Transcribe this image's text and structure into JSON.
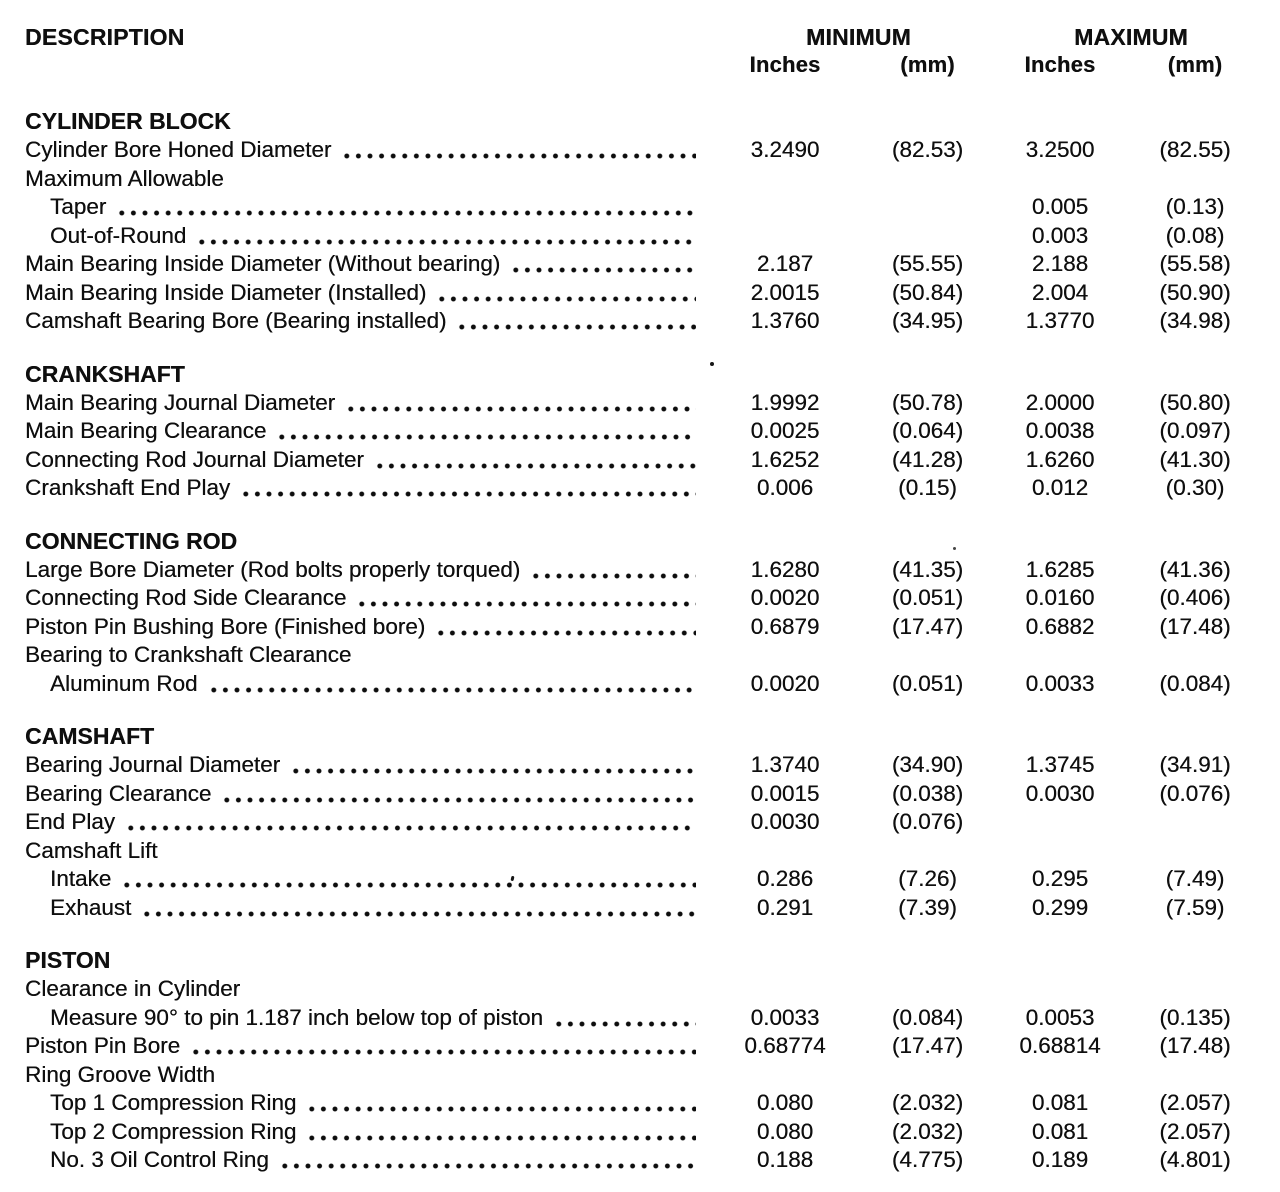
{
  "table": {
    "headers": {
      "description": "DESCRIPTION",
      "minimum": "MINIMUM",
      "maximum": "MAXIMUM",
      "inches": "Inches",
      "mm": "(mm)"
    },
    "sections": [
      {
        "title": "CYLINDER BLOCK",
        "rows": [
          {
            "label": "Cylinder Bore Honed Diameter",
            "indent": 0,
            "dots": true,
            "min_in": "3.2490",
            "min_mm": "(82.53)",
            "max_in": "3.2500",
            "max_mm": "(82.55)"
          },
          {
            "label": "Maximum Allowable",
            "indent": 0,
            "dots": false,
            "min_in": "",
            "min_mm": "",
            "max_in": "",
            "max_mm": ""
          },
          {
            "label": "Taper",
            "indent": 1,
            "dots": true,
            "min_in": "",
            "min_mm": "",
            "max_in": "0.005",
            "max_mm": "(0.13)"
          },
          {
            "label": "Out-of-Round",
            "indent": 1,
            "dots": true,
            "min_in": "",
            "min_mm": "",
            "max_in": "0.003",
            "max_mm": "(0.08)"
          },
          {
            "label": "Main Bearing Inside Diameter (Without bearing)",
            "indent": 0,
            "dots": true,
            "min_in": "2.187",
            "min_mm": "(55.55)",
            "max_in": "2.188",
            "max_mm": "(55.58)"
          },
          {
            "label": "Main Bearing Inside Diameter (Installed)",
            "indent": 0,
            "dots": true,
            "min_in": "2.0015",
            "min_mm": "(50.84)",
            "max_in": "2.004",
            "max_mm": "(50.90)"
          },
          {
            "label": "Camshaft Bearing Bore (Bearing installed)",
            "indent": 0,
            "dots": true,
            "min_in": "1.3760",
            "min_mm": "(34.95)",
            "max_in": "1.3770",
            "max_mm": "(34.98)"
          }
        ]
      },
      {
        "title": "CRANKSHAFT",
        "rows": [
          {
            "label": "Main Bearing Journal Diameter",
            "indent": 0,
            "dots": true,
            "min_in": "1.9992",
            "min_mm": "(50.78)",
            "max_in": "2.0000",
            "max_mm": "(50.80)"
          },
          {
            "label": "Main Bearing Clearance",
            "indent": 0,
            "dots": true,
            "min_in": "0.0025",
            "min_mm": "(0.064)",
            "max_in": "0.0038",
            "max_mm": "(0.097)"
          },
          {
            "label": "Connecting Rod Journal Diameter",
            "indent": 0,
            "dots": true,
            "min_in": "1.6252",
            "min_mm": "(41.28)",
            "max_in": "1.6260",
            "max_mm": "(41.30)"
          },
          {
            "label": "Crankshaft End Play",
            "indent": 0,
            "dots": true,
            "min_in": "0.006",
            "min_mm": "(0.15)",
            "max_in": "0.012",
            "max_mm": "(0.30)"
          }
        ]
      },
      {
        "title": "CONNECTING ROD",
        "rows": [
          {
            "label": "Large Bore Diameter (Rod bolts properly torqued)",
            "indent": 0,
            "dots": true,
            "min_in": "1.6280",
            "min_mm": "(41.35)",
            "max_in": "1.6285",
            "max_mm": "(41.36)"
          },
          {
            "label": "Connecting Rod Side Clearance",
            "indent": 0,
            "dots": true,
            "min_in": "0.0020",
            "min_mm": "(0.051)",
            "max_in": "0.0160",
            "max_mm": "(0.406)"
          },
          {
            "label": "Piston Pin Bushing Bore (Finished bore)",
            "indent": 0,
            "dots": true,
            "min_in": "0.6879",
            "min_mm": "(17.47)",
            "max_in": "0.6882",
            "max_mm": "(17.48)"
          },
          {
            "label": "Bearing to Crankshaft Clearance",
            "indent": 0,
            "dots": false,
            "min_in": "",
            "min_mm": "",
            "max_in": "",
            "max_mm": ""
          },
          {
            "label": "Aluminum Rod",
            "indent": 1,
            "dots": true,
            "min_in": "0.0020",
            "min_mm": "(0.051)",
            "max_in": "0.0033",
            "max_mm": "(0.084)"
          }
        ]
      },
      {
        "title": "CAMSHAFT",
        "rows": [
          {
            "label": "Bearing Journal Diameter",
            "indent": 0,
            "dots": true,
            "min_in": "1.3740",
            "min_mm": "(34.90)",
            "max_in": "1.3745",
            "max_mm": "(34.91)"
          },
          {
            "label": "Bearing Clearance",
            "indent": 0,
            "dots": true,
            "min_in": "0.0015",
            "min_mm": "(0.038)",
            "max_in": "0.0030",
            "max_mm": "(0.076)"
          },
          {
            "label": "End Play",
            "indent": 0,
            "dots": true,
            "min_in": "0.0030",
            "min_mm": "(0.076)",
            "max_in": "",
            "max_mm": ""
          },
          {
            "label": "Camshaft Lift",
            "indent": 0,
            "dots": false,
            "min_in": "",
            "min_mm": "",
            "max_in": "",
            "max_mm": ""
          },
          {
            "label": "Intake",
            "indent": 1,
            "dots": true,
            "min_in": "0.286",
            "min_mm": "(7.26)",
            "max_in": "0.295",
            "max_mm": "(7.49)"
          },
          {
            "label": "Exhaust",
            "indent": 1,
            "dots": true,
            "min_in": "0.291",
            "min_mm": "(7.39)",
            "max_in": "0.299",
            "max_mm": "(7.59)"
          }
        ]
      },
      {
        "title": "PISTON",
        "rows": [
          {
            "label": "Clearance in Cylinder",
            "indent": 0,
            "dots": false,
            "min_in": "",
            "min_mm": "",
            "max_in": "",
            "max_mm": ""
          },
          {
            "label": "Measure 90° to pin 1.187 inch below top of piston",
            "indent": 1,
            "dots": true,
            "min_in": "0.0033",
            "min_mm": "(0.084)",
            "max_in": "0.0053",
            "max_mm": "(0.135)"
          },
          {
            "label": "Piston Pin Bore",
            "indent": 0,
            "dots": true,
            "min_in": "0.68774",
            "min_mm": "(17.47)",
            "max_in": "0.68814",
            "max_mm": "(17.48)"
          },
          {
            "label": "Ring Groove Width",
            "indent": 0,
            "dots": false,
            "min_in": "",
            "min_mm": "",
            "max_in": "",
            "max_mm": ""
          },
          {
            "label": "Top 1 Compression Ring",
            "indent": 1,
            "dots": true,
            "min_in": "0.080",
            "min_mm": "(2.032)",
            "max_in": "0.081",
            "max_mm": "(2.057)"
          },
          {
            "label": "Top 2 Compression Ring",
            "indent": 1,
            "dots": true,
            "min_in": "0.080",
            "min_mm": "(2.032)",
            "max_in": "0.081",
            "max_mm": "(2.057)"
          },
          {
            "label": "No. 3 Oil Control Ring",
            "indent": 1,
            "dots": true,
            "min_in": "0.188",
            "min_mm": "(4.775)",
            "max_in": "0.189",
            "max_mm": "(4.801)"
          }
        ]
      }
    ]
  }
}
